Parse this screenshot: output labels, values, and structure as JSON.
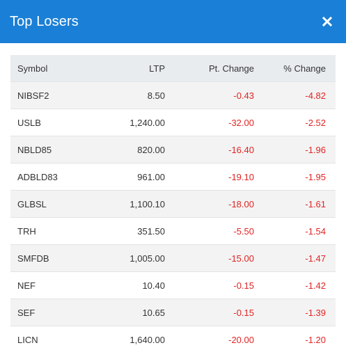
{
  "modal": {
    "title": "Top Losers"
  },
  "icons": {
    "close": "close-icon"
  },
  "colors": {
    "header_bg": "#1a7fd6",
    "negative": "#e02424",
    "table_header_bg": "#e9ecef",
    "striped_row_bg": "#f3f3f3"
  },
  "table": {
    "columns": [
      "Symbol",
      "LTP",
      "Pt. Change",
      "% Change"
    ],
    "rows": [
      {
        "symbol": "NIBSF2",
        "ltp": "8.50",
        "pt_change": "-0.43",
        "pct_change": "-4.82"
      },
      {
        "symbol": "USLB",
        "ltp": "1,240.00",
        "pt_change": "-32.00",
        "pct_change": "-2.52"
      },
      {
        "symbol": "NBLD85",
        "ltp": "820.00",
        "pt_change": "-16.40",
        "pct_change": "-1.96"
      },
      {
        "symbol": "ADBLD83",
        "ltp": "961.00",
        "pt_change": "-19.10",
        "pct_change": "-1.95"
      },
      {
        "symbol": "GLBSL",
        "ltp": "1,100.10",
        "pt_change": "-18.00",
        "pct_change": "-1.61"
      },
      {
        "symbol": "TRH",
        "ltp": "351.50",
        "pt_change": "-5.50",
        "pct_change": "-1.54"
      },
      {
        "symbol": "SMFDB",
        "ltp": "1,005.00",
        "pt_change": "-15.00",
        "pct_change": "-1.47"
      },
      {
        "symbol": "NEF",
        "ltp": "10.40",
        "pt_change": "-0.15",
        "pct_change": "-1.42"
      },
      {
        "symbol": "SEF",
        "ltp": "10.65",
        "pt_change": "-0.15",
        "pct_change": "-1.39"
      },
      {
        "symbol": "LICN",
        "ltp": "1,640.00",
        "pt_change": "-20.00",
        "pct_change": "-1.20"
      }
    ]
  }
}
